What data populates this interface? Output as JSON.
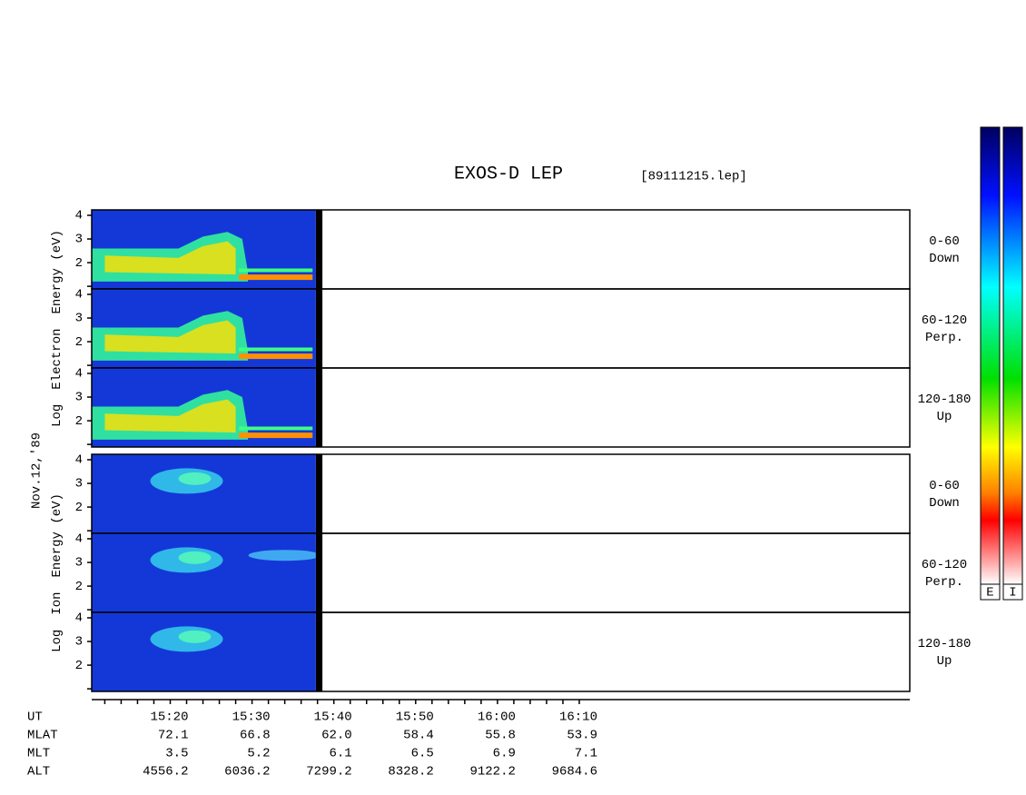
{
  "chart_data": {
    "type": "spectrogram",
    "title": "EXOS-D LEP",
    "file": "[89111215.lep]",
    "date": "Nov.12,'89",
    "groups": [
      {
        "ylabel": [
          "Log",
          "Electron",
          "Energy (eV)"
        ],
        "colorbar": "E",
        "panels": [
          {
            "angle": "0-60",
            "direction": "Down"
          },
          {
            "angle": "60-120",
            "direction": "Perp."
          },
          {
            "angle": "120-180",
            "direction": "Up"
          }
        ]
      },
      {
        "ylabel": [
          "Log",
          "Ion",
          "Energy (eV)"
        ],
        "colorbar": "I",
        "panels": [
          {
            "angle": "0-60",
            "direction": "Down"
          },
          {
            "angle": "60-120",
            "direction": "Perp."
          },
          {
            "angle": "120-180",
            "direction": "Up"
          }
        ]
      }
    ],
    "ylim": [
      0.89,
      4.23
    ],
    "yticks": [
      2,
      3,
      4
    ],
    "minor_yticks": [
      1
    ],
    "xlim": [
      910.4,
      1010.4
    ],
    "xticks": [
      {
        "value": 920,
        "label": "15:20"
      },
      {
        "value": 930,
        "label": "15:30"
      },
      {
        "value": 940,
        "label": "15:40"
      },
      {
        "value": 950,
        "label": "15:50"
      },
      {
        "value": 960,
        "label": "16:00"
      },
      {
        "value": 970,
        "label": "16:10"
      }
    ],
    "minor_xticks": [
      912,
      914,
      916,
      918,
      922,
      924,
      926,
      928,
      932,
      934,
      936,
      938,
      942,
      944,
      946,
      948,
      952,
      954,
      956,
      958,
      962,
      964,
      966,
      968
    ],
    "data_gap": [
      937.8,
      938.6
    ],
    "orbit": {
      "labels": [
        "UT",
        "MLAT",
        "MLT",
        "ALT"
      ],
      "rows": [
        [
          "72.1",
          "66.8",
          "62.0",
          "58.4",
          "55.8",
          "53.9"
        ],
        [
          "3.5",
          "5.2",
          "6.1",
          "6.5",
          "6.9",
          "7.1"
        ],
        [
          "4556.2",
          "6036.2",
          "7299.2",
          "8328.2",
          "9122.2",
          "9684.6"
        ]
      ]
    }
  }
}
